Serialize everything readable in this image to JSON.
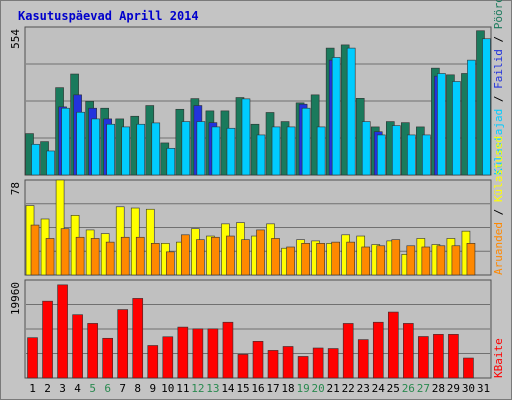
{
  "chart_data": [
    {
      "type": "bar",
      "title": "Kasutuspäevad Aprill 2014",
      "categories": [
        "1",
        "2",
        "3",
        "4",
        "5",
        "6",
        "7",
        "8",
        "9",
        "10",
        "11",
        "12",
        "13",
        "14",
        "15",
        "16",
        "17",
        "18",
        "19",
        "20",
        "21",
        "22",
        "23",
        "24",
        "25",
        "26",
        "27",
        "28",
        "29",
        "30",
        "31"
      ],
      "weekend_days": [
        "5",
        "6",
        "12",
        "13",
        "19",
        "20",
        "26",
        "27"
      ],
      "ymax_label": "554",
      "ylim": [
        0,
        554
      ],
      "legend": [
        "Külastajad",
        "Failid",
        "Pöördumisi"
      ],
      "series": [
        {
          "name": "Pöördumisi",
          "color": "#1a7a5c",
          "values": [
            155,
            125,
            327,
            378,
            276,
            250,
            210,
            220,
            260,
            120,
            246,
            286,
            240,
            240,
            290,
            190,
            234,
            200,
            270,
            300,
            475,
            487,
            287,
            180,
            200,
            196,
            180,
            400,
            375,
            380,
            540
          ]
        },
        {
          "name": "Failid",
          "color": "#2233dd",
          "values": [
            0,
            0,
            255,
            300,
            250,
            210,
            0,
            0,
            0,
            0,
            0,
            260,
            196,
            0,
            0,
            0,
            0,
            0,
            265,
            0,
            430,
            0,
            0,
            162,
            0,
            0,
            0,
            370,
            0,
            0,
            0
          ]
        },
        {
          "name": "Külastajad",
          "color": "#00ccff",
          "values": [
            115,
            90,
            250,
            235,
            210,
            190,
            180,
            190,
            195,
            100,
            200,
            200,
            180,
            175,
            285,
            150,
            180,
            180,
            250,
            180,
            440,
            475,
            200,
            150,
            185,
            150,
            150,
            380,
            350,
            430,
            510
          ]
        }
      ]
    },
    {
      "type": "bar",
      "ymax_label": "78",
      "ylim": [
        0,
        78
      ],
      "legend": [
        "Aruanded",
        "Külastused"
      ],
      "series": [
        {
          "name": "Külastused",
          "color": "#ffff00",
          "values": [
            57,
            46,
            78,
            49,
            37,
            34,
            56,
            55,
            54,
            26,
            27,
            38,
            32,
            42,
            43,
            32,
            42,
            22,
            29,
            28,
            26,
            33,
            32,
            25,
            28,
            17,
            30,
            25,
            30,
            36,
            0
          ]
        },
        {
          "name": "Aruanded",
          "color": "#ff8800",
          "values": [
            41,
            30,
            38,
            31,
            30,
            27,
            31,
            31,
            26,
            19,
            33,
            29,
            31,
            32,
            29,
            37,
            30,
            23,
            26,
            26,
            27,
            27,
            23,
            24,
            29,
            24,
            23,
            24,
            24,
            26,
            0
          ]
        }
      ]
    },
    {
      "type": "bar",
      "ymax_label": "19960",
      "ylim": [
        0,
        19960
      ],
      "legend": [
        "KBaite"
      ],
      "series": [
        {
          "name": "KBaite",
          "color": "#ff0000",
          "values": [
            8210,
            15650,
            18970,
            12890,
            11120,
            8090,
            13940,
            16210,
            6620,
            8400,
            10370,
            10010,
            10010,
            11360,
            4810,
            7470,
            5620,
            6420,
            4390,
            6110,
            6000,
            11110,
            7820,
            11360,
            13430,
            11120,
            8450,
            8890,
            8890,
            4070,
            0
          ]
        }
      ]
    }
  ]
}
